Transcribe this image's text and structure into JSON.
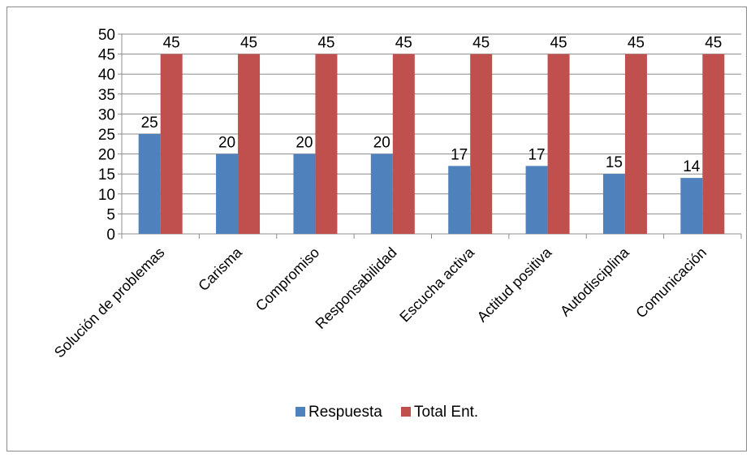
{
  "chart_data": {
    "type": "bar",
    "title": "",
    "xlabel": "",
    "ylabel": "",
    "categories": [
      "Solución de problemas",
      "Carisma",
      "Compromiso",
      "Responsabilidad",
      "Escucha activa",
      "Actitud positiva",
      "Autodisciplina",
      "Comunicación"
    ],
    "series": [
      {
        "name": "Respuesta",
        "color": "#4f81bd",
        "values": [
          25,
          20,
          20,
          20,
          17,
          17,
          15,
          14
        ]
      },
      {
        "name": "Total Ent.",
        "color": "#c0504d",
        "values": [
          45,
          45,
          45,
          45,
          45,
          45,
          45,
          45
        ]
      }
    ],
    "ylim": [
      0,
      50
    ],
    "yticks": [
      0,
      5,
      10,
      15,
      20,
      25,
      30,
      35,
      40,
      45,
      50
    ],
    "grid": true,
    "legend": "bottom",
    "data_labels": true
  }
}
